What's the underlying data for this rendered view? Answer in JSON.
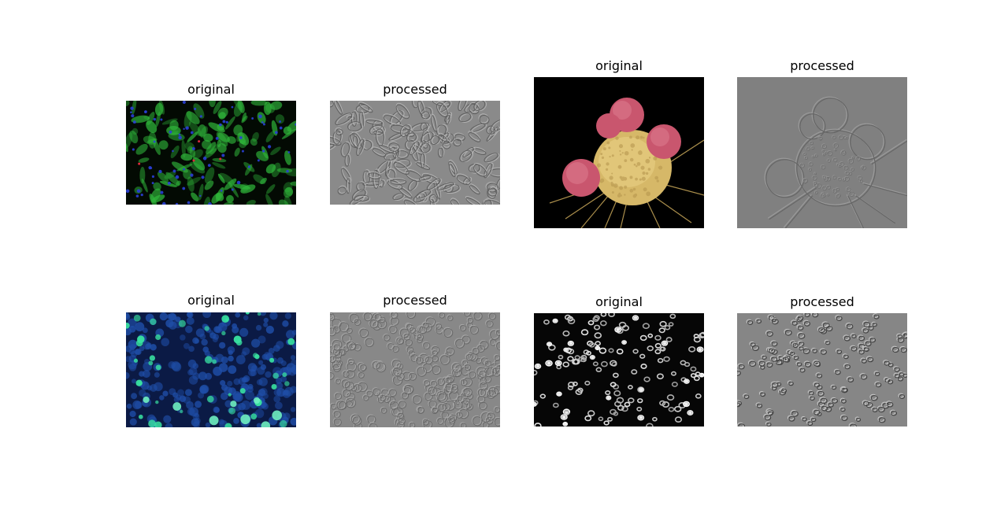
{
  "panels": [
    {
      "title": "original"
    },
    {
      "title": "processed"
    },
    {
      "title": "original"
    },
    {
      "title": "processed"
    },
    {
      "title": "original"
    },
    {
      "title": "processed"
    },
    {
      "title": "original"
    },
    {
      "title": "processed"
    }
  ],
  "colors": {
    "fluorescent_green": "#2fb53a",
    "nucleus_blue": "#2a3fd6",
    "sem_yellow": "#d6b868",
    "sem_pink": "#c9566e",
    "emboss_gray": "#808080",
    "hoechst_blue": "#1f4ea8",
    "gfp_green": "#38e0a0"
  }
}
